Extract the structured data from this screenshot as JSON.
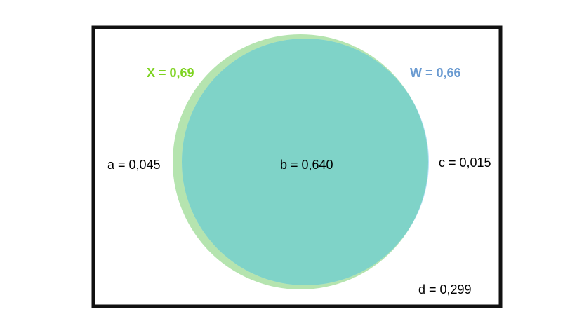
{
  "sets": {
    "x": {
      "label": "X = 0,69",
      "color": "#7ED321",
      "fill": "#B5E4AF"
    },
    "w": {
      "label": "W = 0,66",
      "color": "#6B9BD1",
      "fill": "#B3E0F7"
    }
  },
  "overlap_fill": "#7FD3C8",
  "regions": {
    "a": "a = 0,045",
    "b": "b = 0,640",
    "c": "c = 0,015",
    "d": "d = 0,299"
  }
}
